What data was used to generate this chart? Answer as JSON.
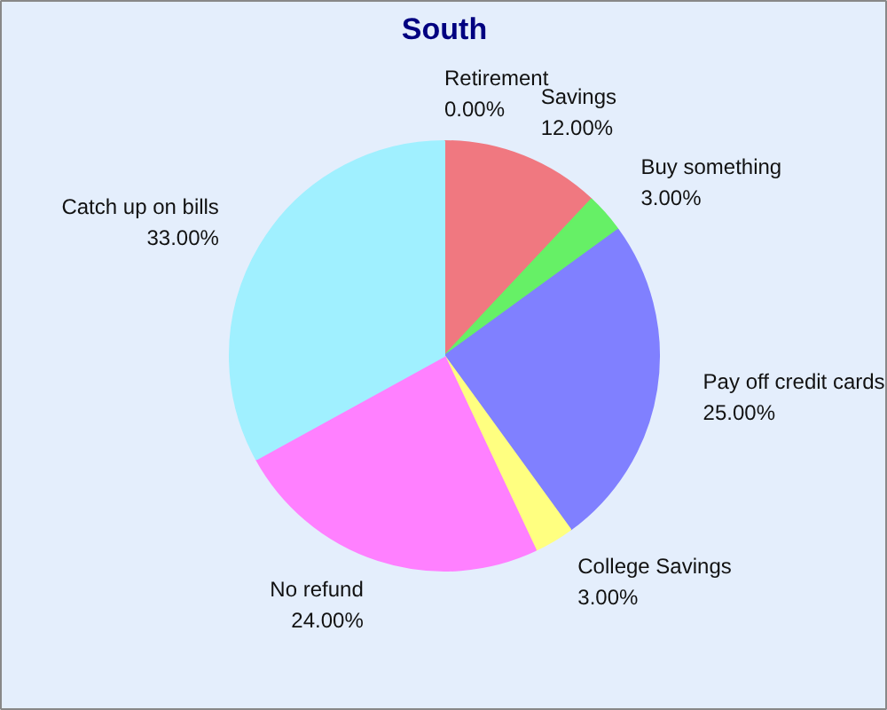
{
  "chart_data": {
    "type": "pie",
    "title": "South",
    "categories": [
      "Retirement",
      "Savings",
      "Buy something",
      "Pay off credit cards",
      "College Savings",
      "No refund",
      "Catch up on bills"
    ],
    "values": [
      0,
      12,
      3,
      25,
      3,
      24,
      33
    ],
    "value_labels": [
      "0.00%",
      "12.00%",
      "3.00%",
      "25.00%",
      "3.00%",
      "24.00%",
      "33.00%"
    ],
    "colors": [
      "#f07880",
      "#f07880",
      "#66f066",
      "#8080ff",
      "#ffff80",
      "#ff80ff",
      "#a0f0ff"
    ]
  }
}
